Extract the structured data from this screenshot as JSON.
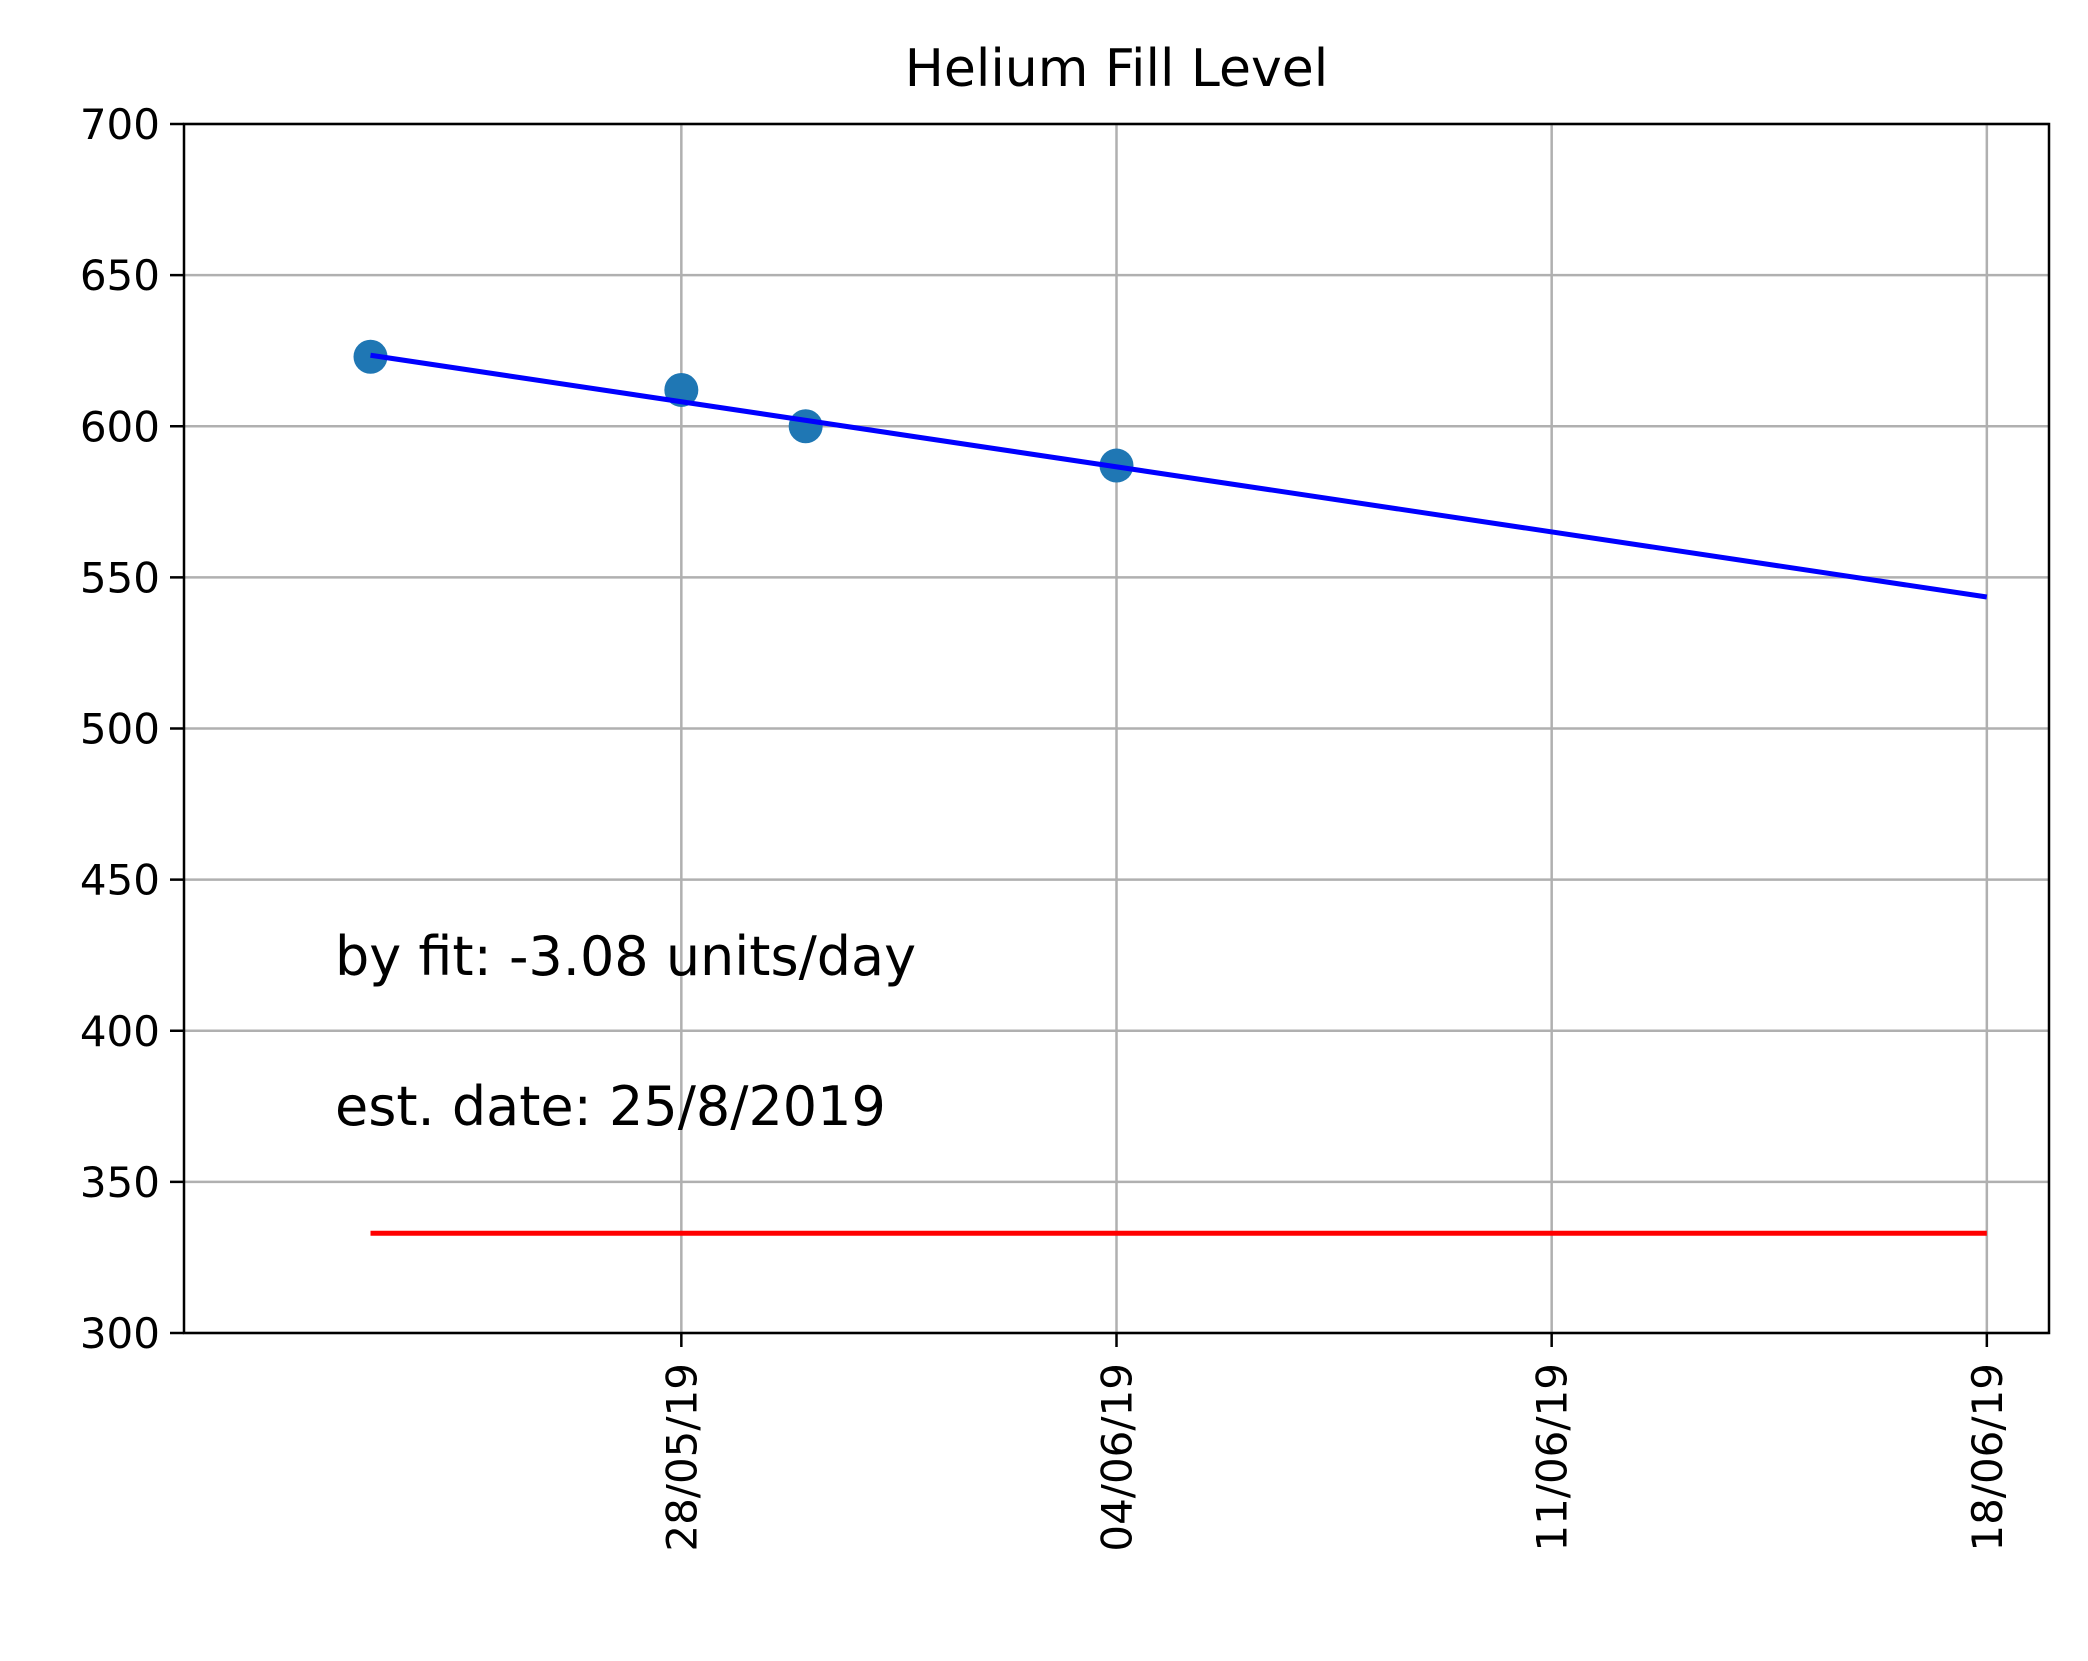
{
  "chart_data": {
    "type": "scatter",
    "title": "Helium Fill Level",
    "xlabel": "",
    "ylabel": "",
    "x_ticks": [
      "2019-05-28",
      "2019-06-04",
      "2019-06-11",
      "2019-06-18"
    ],
    "x_tick_labels": [
      "28/05/19",
      "04/06/19",
      "11/06/19",
      "18/06/19"
    ],
    "xlim": [
      "2019-05-20",
      "2019-06-19"
    ],
    "ylim": [
      300,
      700
    ],
    "y_ticks": [
      300,
      350,
      400,
      450,
      500,
      550,
      600,
      650,
      700
    ],
    "grid": true,
    "points": [
      {
        "x": "2019-05-23",
        "y": 623
      },
      {
        "x": "2019-05-28",
        "y": 612
      },
      {
        "x": "2019-05-30",
        "y": 600
      },
      {
        "x": "2019-06-04",
        "y": 587
      }
    ],
    "fit_line": {
      "from": {
        "x": "2019-05-23",
        "y": 623.5
      },
      "to": {
        "x": "2019-06-18",
        "y": 543.5
      }
    },
    "threshold_line": {
      "from": {
        "x": "2019-05-23",
        "y": 333
      },
      "to": {
        "x": "2019-06-18",
        "y": 333
      }
    },
    "annotations": [
      "by fit: -3.08 units/day",
      "est. date: 25/8/2019"
    ],
    "colors": {
      "points": "#1f77b4",
      "fit_line": "#0000ff",
      "threshold_line": "#ff0000",
      "grid": "#b0b0b0",
      "axes": "#000000"
    }
  }
}
